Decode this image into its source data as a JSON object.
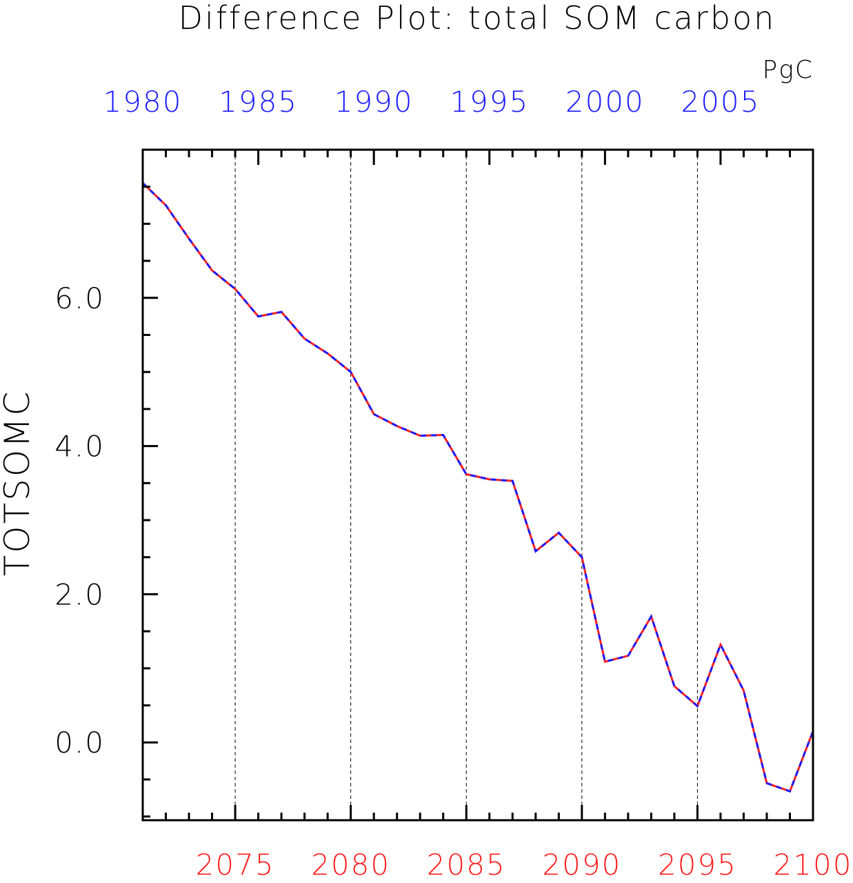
{
  "chart_data": {
    "type": "line",
    "title": "Difference Plot: total SOM carbon",
    "units": "PgC",
    "ylabel": "TOTSOMC",
    "ylim": [
      -1.05,
      8.0
    ],
    "y_ticks": [
      0.0,
      2.0,
      4.0,
      6.0
    ],
    "y_tick_labels": [
      "0.0",
      "2.0",
      "4.0",
      "6.0"
    ],
    "grid": "vertical dashed lines at labeled bottom-axis years",
    "bottom_axis": {
      "color": "#ff2020",
      "range": [
        2071,
        2100
      ],
      "tick_labels": [
        "2075",
        "2080",
        "2085",
        "2090",
        "2095",
        "2100"
      ]
    },
    "top_axis": {
      "color": "#1a1aff",
      "range": [
        1980,
        2009
      ],
      "tick_labels": [
        "1980",
        "1985",
        "1990",
        "1995",
        "2000",
        "2005"
      ]
    },
    "x": [
      2071,
      2072,
      2073,
      2074,
      2075,
      2076,
      2077,
      2078,
      2079,
      2080,
      2081,
      2082,
      2083,
      2084,
      2085,
      2086,
      2087,
      2088,
      2089,
      2090,
      2091,
      2092,
      2093,
      2094,
      2095,
      2096,
      2097,
      2098,
      2099,
      2100
    ],
    "series": [
      {
        "color": "#ff2020",
        "style": "solid",
        "values": [
          7.55,
          7.25,
          6.8,
          6.37,
          6.12,
          5.75,
          5.81,
          5.45,
          5.25,
          5.0,
          4.43,
          4.27,
          4.14,
          4.15,
          3.62,
          3.55,
          3.53,
          2.58,
          2.83,
          2.5,
          1.09,
          1.17,
          1.7,
          0.76,
          0.49,
          1.32,
          0.7,
          -0.55,
          -0.66,
          0.15
        ]
      },
      {
        "color": "#1a1aff",
        "style": "dashed",
        "values": [
          7.55,
          7.25,
          6.8,
          6.37,
          6.12,
          5.75,
          5.81,
          5.45,
          5.25,
          5.0,
          4.43,
          4.27,
          4.14,
          4.15,
          3.62,
          3.55,
          3.53,
          2.58,
          2.83,
          2.5,
          1.09,
          1.17,
          1.7,
          0.76,
          0.49,
          1.32,
          0.7,
          -0.55,
          -0.66,
          0.15
        ]
      }
    ]
  }
}
